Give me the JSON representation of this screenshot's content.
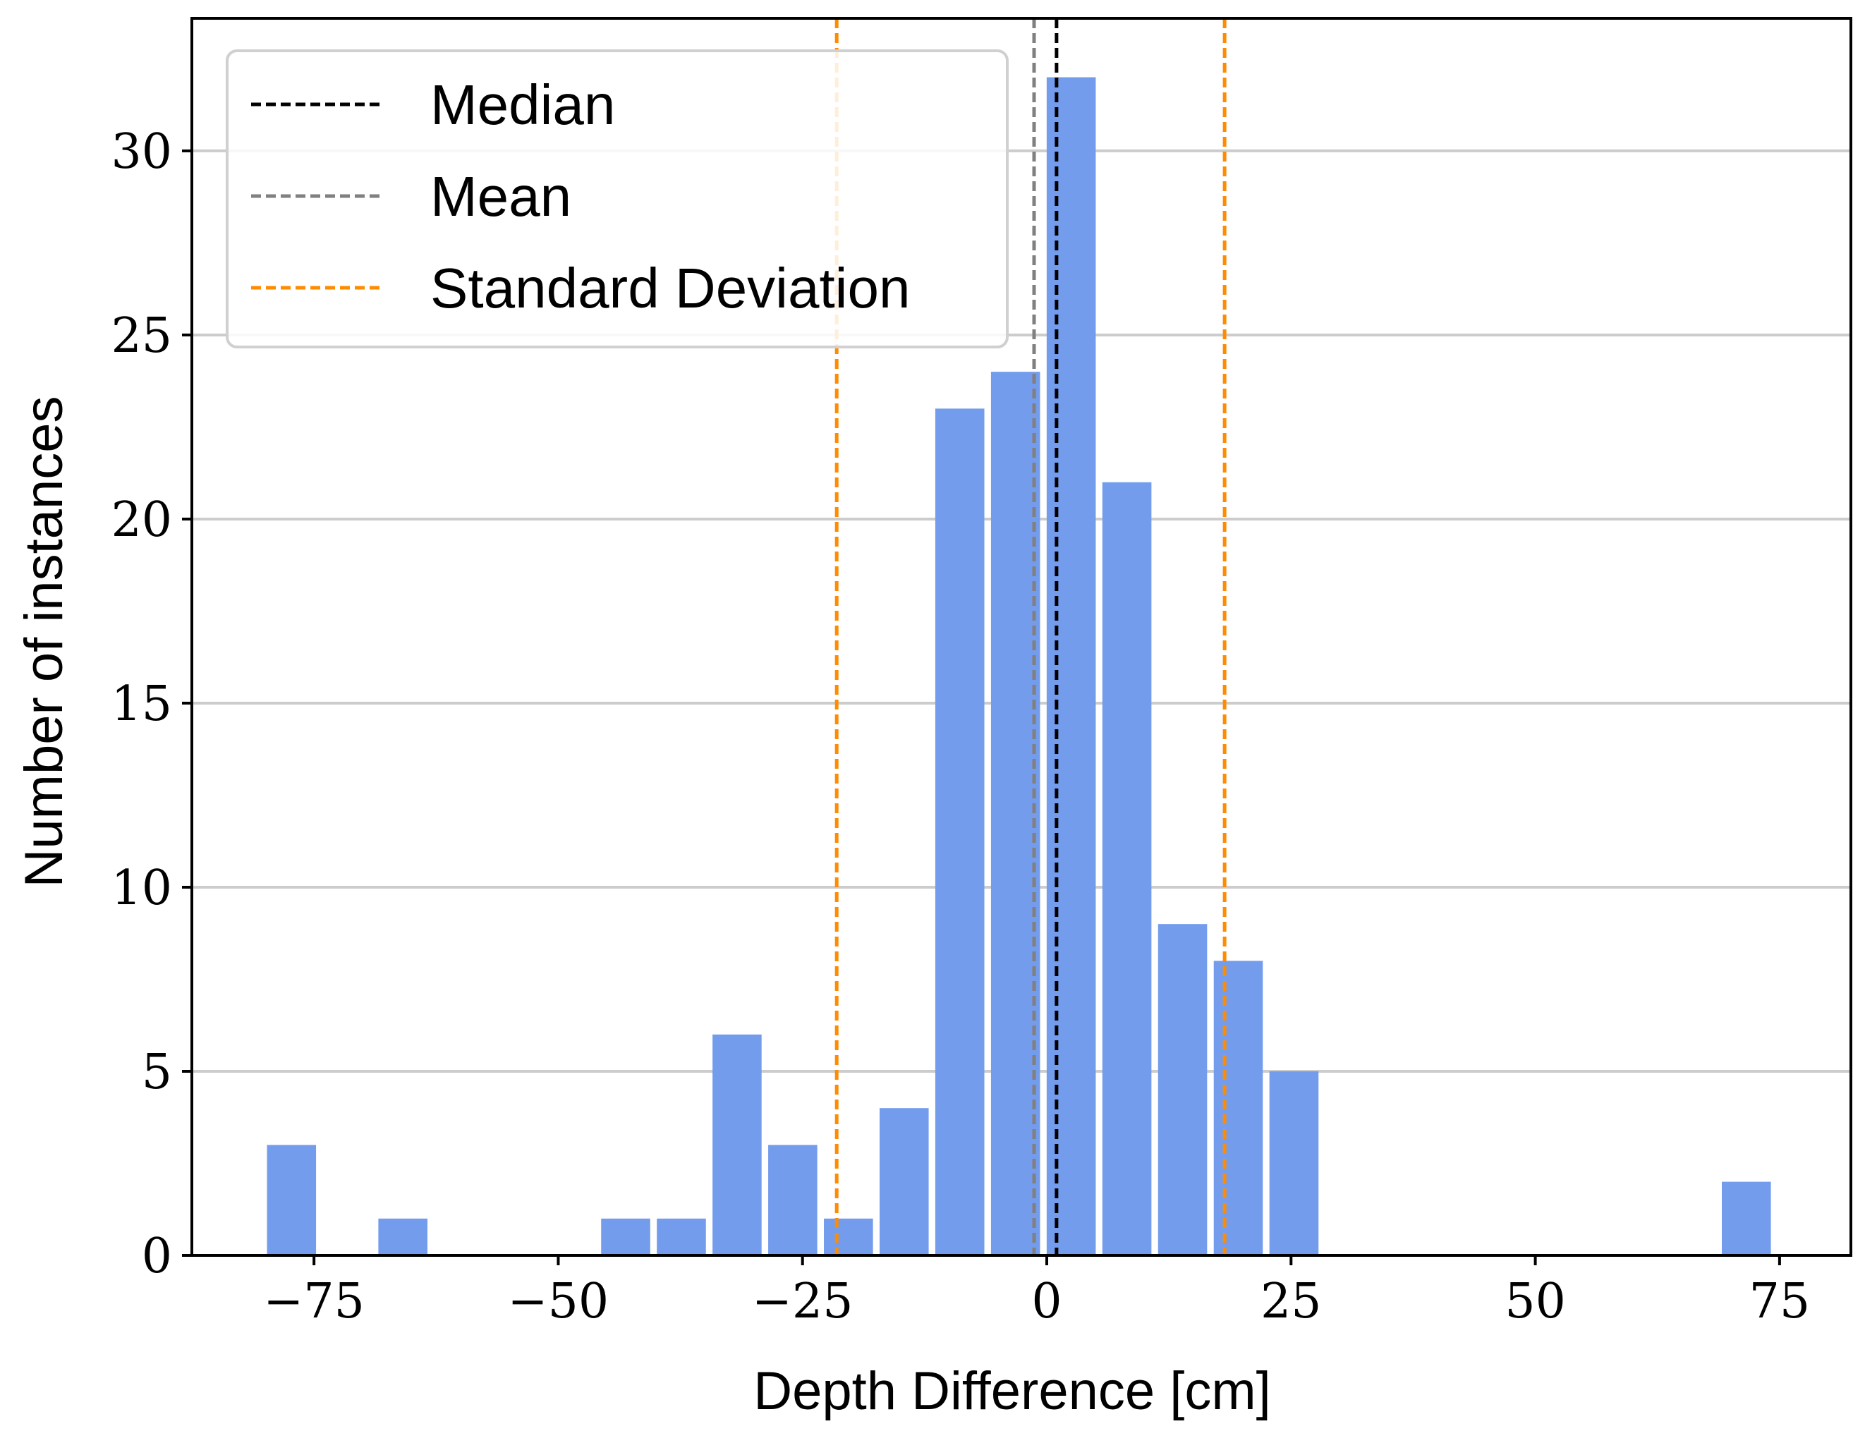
{
  "chart_data": {
    "type": "bar",
    "title": "",
    "xlabel": "Depth Difference [cm]",
    "ylabel": "Number of instances",
    "xlim": [
      -87.5,
      82.3
    ],
    "ylim": [
      0,
      33.6
    ],
    "grid": "horizontal",
    "legend_position": "top-left",
    "bar_color": "#739ced",
    "bin_width": 5.6,
    "bins": [
      {
        "center": -77.3,
        "count": 3
      },
      {
        "center": -65.9,
        "count": 1
      },
      {
        "center": -43.1,
        "count": 1
      },
      {
        "center": -37.4,
        "count": 1
      },
      {
        "center": -31.7,
        "count": 6
      },
      {
        "center": -26.0,
        "count": 3
      },
      {
        "center": -20.3,
        "count": 1
      },
      {
        "center": -14.6,
        "count": 4
      },
      {
        "center": -8.9,
        "count": 23
      },
      {
        "center": -3.2,
        "count": 24
      },
      {
        "center": 2.5,
        "count": 32
      },
      {
        "center": 8.2,
        "count": 21
      },
      {
        "center": 13.9,
        "count": 9
      },
      {
        "center": 19.6,
        "count": 8
      },
      {
        "center": 25.3,
        "count": 5
      },
      {
        "center": 71.6,
        "count": 2
      }
    ],
    "reference_lines": [
      {
        "name": "Median",
        "x": 1.0,
        "color": "#000000"
      },
      {
        "name": "Mean",
        "x": -1.3,
        "color": "#808080"
      },
      {
        "name": "Standard Deviation",
        "x": -21.5,
        "color": "#ff8c00"
      },
      {
        "name": "Standard Deviation",
        "x": 18.2,
        "color": "#ff8c00"
      }
    ],
    "x_ticks": [
      {
        "value": -75,
        "label": "−75"
      },
      {
        "value": -50,
        "label": "−50"
      },
      {
        "value": -25,
        "label": "−25"
      },
      {
        "value": 0,
        "label": "0"
      },
      {
        "value": 25,
        "label": "25"
      },
      {
        "value": 50,
        "label": "50"
      },
      {
        "value": 75,
        "label": "75"
      }
    ],
    "y_ticks": [
      {
        "value": 0,
        "label": "0"
      },
      {
        "value": 5,
        "label": "5"
      },
      {
        "value": 10,
        "label": "10"
      },
      {
        "value": 15,
        "label": "15"
      },
      {
        "value": 20,
        "label": "20"
      },
      {
        "value": 25,
        "label": "25"
      },
      {
        "value": 30,
        "label": "30"
      }
    ],
    "legend": [
      {
        "label": "Median",
        "color": "#000000"
      },
      {
        "label": "Mean",
        "color": "#808080"
      },
      {
        "label": "Standard Deviation",
        "color": "#ff8c00"
      }
    ]
  }
}
